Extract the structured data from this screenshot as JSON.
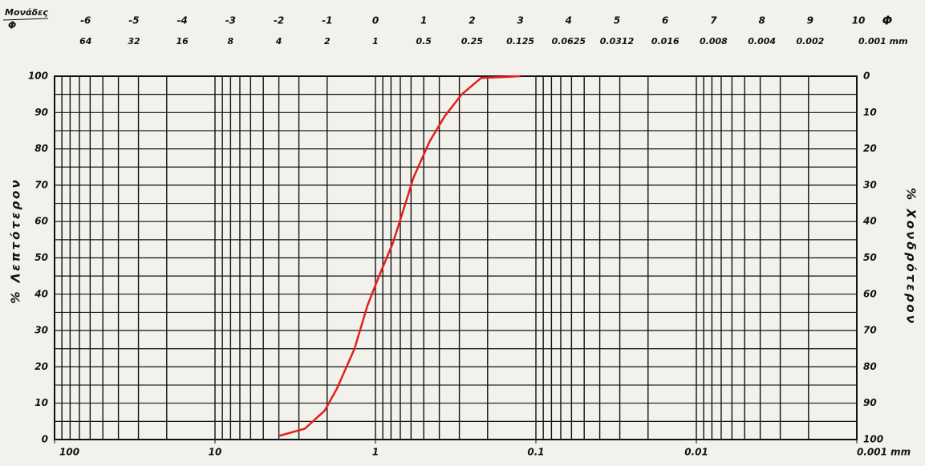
{
  "chart_data": {
    "type": "line",
    "top_title": [
      "Μονάδες",
      "Φ"
    ],
    "phi_symbol": "Φ",
    "phi_ticks": [
      -6,
      -5,
      -4,
      -3,
      -2,
      -1,
      0,
      1,
      2,
      3,
      4,
      5,
      6,
      7,
      8,
      9,
      10
    ],
    "x2ticks": [
      {
        "value": 64,
        "label": "64"
      },
      {
        "value": 32,
        "label": "32"
      },
      {
        "value": 16,
        "label": "16"
      },
      {
        "value": 8,
        "label": "8"
      },
      {
        "value": 4,
        "label": "4"
      },
      {
        "value": 2,
        "label": "2"
      },
      {
        "value": 1,
        "label": "1"
      },
      {
        "value": 0.5,
        "label": "0.5"
      },
      {
        "value": 0.25,
        "label": "0.25"
      },
      {
        "value": 0.125,
        "label": "0.125"
      },
      {
        "value": 0.0625,
        "label": "0.0625"
      },
      {
        "value": 0.03125,
        "label": "0.0312"
      },
      {
        "value": 0.015625,
        "label": "0.016"
      },
      {
        "value": 0.0078125,
        "label": "0.008"
      },
      {
        "value": 0.00390625,
        "label": "0.004"
      },
      {
        "value": 0.001953125,
        "label": "0.002"
      },
      {
        "value": 0.0009765625,
        "label": "0.001 mm"
      }
    ],
    "ylabel": "% Λεπτότερον",
    "y2label": "% Χονδρότερον",
    "x_log": true,
    "xlim": [
      100,
      0.001
    ],
    "xticks": [
      100,
      10,
      1,
      0.1,
      0.01,
      {
        "value": 0.001,
        "label": "0.001 mm"
      }
    ],
    "xgrid": [
      100,
      90,
      80,
      70,
      60,
      50,
      40,
      30,
      20,
      10,
      9,
      8,
      7,
      6,
      5,
      4,
      3,
      2,
      1,
      0.9,
      0.8,
      0.7,
      0.6,
      0.5,
      0.4,
      0.3,
      0.2,
      0.1,
      0.09,
      0.08,
      0.07,
      0.06,
      0.05,
      0.04,
      0.03,
      0.02,
      0.01,
      0.009,
      0.008,
      0.007,
      0.006,
      0.005,
      0.004,
      0.003,
      0.002,
      0.001
    ],
    "ylim": [
      0,
      100
    ],
    "yticks": [
      0,
      10,
      20,
      30,
      40,
      50,
      60,
      70,
      80,
      90,
      100
    ],
    "ygrid": [
      0,
      5,
      10,
      15,
      20,
      25,
      30,
      35,
      40,
      45,
      50,
      55,
      60,
      65,
      70,
      75,
      80,
      85,
      90,
      95,
      100
    ],
    "y2lim": [
      100,
      0
    ],
    "y2ticks": [
      0,
      10,
      20,
      30,
      40,
      50,
      60,
      70,
      80,
      90,
      100
    ],
    "grid": true,
    "color": "#e3201b",
    "x": [
      4,
      2.75,
      2.07,
      1.74,
      1.35,
      1.12,
      0.95,
      0.78,
      0.65,
      0.58,
      0.46,
      0.37,
      0.29,
      0.22,
      0.125
    ],
    "values": [
      1,
      3,
      8,
      14,
      25,
      37,
      45,
      54,
      65,
      72,
      82,
      89,
      95,
      99.5,
      100
    ]
  }
}
